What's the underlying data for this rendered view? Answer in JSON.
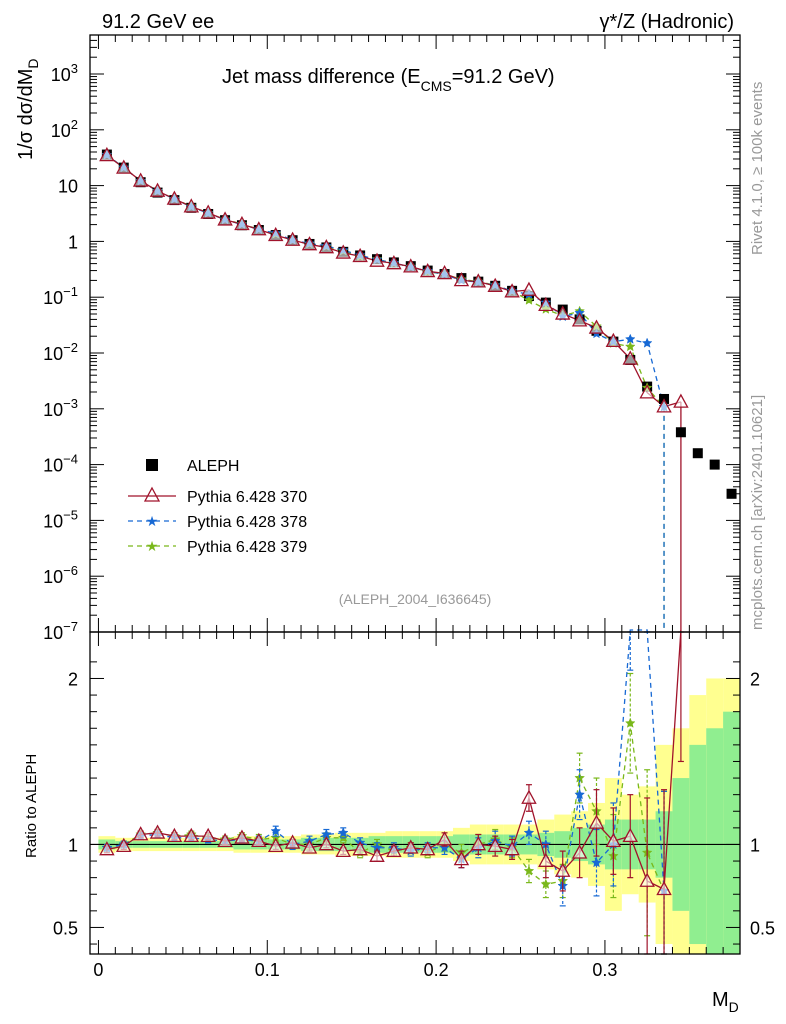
{
  "header": {
    "left": "91.2 GeV ee",
    "right": "γ*/Z (Hadronic)"
  },
  "side_labels": {
    "rivet": "Rivet 4.1.0, ≥ 100k events",
    "mcplots": "mcplots.cern.ch [arXiv:2401.10621]"
  },
  "chart_data": {
    "type": "line",
    "title": "Jet mass difference (E_CMS=91.2 GeV)",
    "title_parts": {
      "main": "Jet mass difference (E",
      "sub": "CMS",
      "tail": "=91.2 GeV)"
    },
    "analysis_tag": "(ALEPH_2004_I636645)",
    "xlabel": "M_D",
    "xlabel_parts": {
      "main": "M",
      "sub": "D"
    },
    "ylabel": "1/σ dσ/dM_D",
    "ylabel_parts": {
      "main": "1/σ  dσ/dM",
      "sub": "D"
    },
    "ratio_ylabel": "Ratio to ALEPH",
    "xlim": [
      -0.005,
      0.38
    ],
    "ylim": [
      1e-07,
      5000
    ],
    "ratio_ylim": [
      0.34,
      2.28
    ],
    "x_ticks": [
      {
        "value": 0.0,
        "label": "0"
      },
      {
        "value": 0.1,
        "label": "0.1"
      },
      {
        "value": 0.2,
        "label": "0.2"
      },
      {
        "value": 0.3,
        "label": "0.3"
      }
    ],
    "y_ticks": [
      {
        "value": 1000,
        "label": "10",
        "exp": "3"
      },
      {
        "value": 100,
        "label": "10",
        "exp": "2"
      },
      {
        "value": 10,
        "label": "10",
        "exp": ""
      },
      {
        "value": 1,
        "label": "1",
        "exp": ""
      },
      {
        "value": 0.1,
        "label": "10",
        "exp": "−1"
      },
      {
        "value": 0.01,
        "label": "10",
        "exp": "−2"
      },
      {
        "value": 0.001,
        "label": "10",
        "exp": "−3"
      },
      {
        "value": 0.0001,
        "label": "10",
        "exp": "−4"
      },
      {
        "value": 1e-05,
        "label": "10",
        "exp": "−5"
      },
      {
        "value": 1e-06,
        "label": "10",
        "exp": "−6"
      },
      {
        "value": 1e-07,
        "label": "10",
        "exp": "−7"
      }
    ],
    "ratio_ticks": [
      {
        "value": 0.5,
        "label": "0.5"
      },
      {
        "value": 1,
        "label": "1"
      },
      {
        "value": 2,
        "label": "2"
      }
    ],
    "x": [
      0.005,
      0.015,
      0.025,
      0.035,
      0.045,
      0.055,
      0.065,
      0.075,
      0.085,
      0.095,
      0.105,
      0.115,
      0.125,
      0.135,
      0.145,
      0.155,
      0.165,
      0.175,
      0.185,
      0.195,
      0.205,
      0.215,
      0.225,
      0.235,
      0.245,
      0.255,
      0.265,
      0.275,
      0.285,
      0.295,
      0.305,
      0.315,
      0.325,
      0.335,
      0.345,
      0.355,
      0.365,
      0.375
    ],
    "data_series": {
      "name": "ALEPH",
      "values": [
        36,
        21,
        11.5,
        7.5,
        5.5,
        4,
        3.1,
        2.4,
        1.95,
        1.6,
        1.3,
        1.05,
        0.9,
        0.78,
        0.65,
        0.56,
        0.48,
        0.42,
        0.36,
        0.3,
        0.26,
        0.22,
        0.19,
        0.16,
        0.13,
        0.105,
        0.08,
        0.06,
        0.04,
        0.025,
        0.016,
        0.0075,
        0.0025,
        0.0015,
        0.00038,
        0.00016,
        0.0001,
        3e-05
      ]
    },
    "band_outer": [
      0.05,
      0.04,
      0.04,
      0.04,
      0.04,
      0.04,
      0.04,
      0.04,
      0.05,
      0.05,
      0.05,
      0.05,
      0.06,
      0.06,
      0.07,
      0.07,
      0.07,
      0.08,
      0.08,
      0.08,
      0.08,
      0.1,
      0.12,
      0.12,
      0.12,
      0.12,
      0.15,
      0.18,
      0.2,
      0.25,
      0.4,
      0.3,
      0.35,
      0.6,
      0.7,
      0.9,
      1.0,
      1.0
    ],
    "band_inner": [
      0.03,
      0.02,
      0.02,
      0.02,
      0.02,
      0.02,
      0.02,
      0.02,
      0.03,
      0.03,
      0.03,
      0.03,
      0.04,
      0.04,
      0.04,
      0.04,
      0.05,
      0.05,
      0.05,
      0.05,
      0.05,
      0.06,
      0.06,
      0.06,
      0.06,
      0.06,
      0.07,
      0.08,
      0.1,
      0.12,
      0.15,
      0.15,
      0.15,
      0.2,
      0.4,
      0.6,
      0.7,
      0.8
    ],
    "series": [
      {
        "name": "Pythia 6.428 370",
        "color": "#a0132b",
        "dash": "solid",
        "marker": "triangle",
        "last_index": 34,
        "ratio": [
          0.97,
          0.99,
          1.06,
          1.07,
          1.05,
          1.05,
          1.05,
          1.02,
          1.04,
          1.02,
          0.99,
          1.01,
          0.98,
          1.0,
          0.96,
          0.97,
          0.93,
          0.96,
          0.98,
          0.97,
          1.03,
          0.91,
          1.0,
          0.99,
          0.97,
          1.28,
          0.9,
          0.84,
          0.95,
          1.13,
          1.02,
          1.05,
          0.78,
          0.73,
          3.5
        ],
        "ratio_err": [
          0.02,
          0.02,
          0.02,
          0.02,
          0.02,
          0.02,
          0.02,
          0.02,
          0.02,
          0.02,
          0.02,
          0.02,
          0.02,
          0.02,
          0.02,
          0.03,
          0.03,
          0.03,
          0.03,
          0.03,
          0.04,
          0.05,
          0.06,
          0.06,
          0.06,
          0.08,
          0.1,
          0.12,
          0.15,
          0.2,
          0.2,
          0.25,
          0.5,
          0.6,
          2.0
        ]
      },
      {
        "name": "Pythia 6.428 378",
        "color": "#1769d4",
        "dash": "5,4",
        "marker": "star",
        "last_index": 33,
        "ratio": [
          0.98,
          1.0,
          1.05,
          1.06,
          1.04,
          1.04,
          1.03,
          1.02,
          1.03,
          1.02,
          1.08,
          1.0,
          1.02,
          1.06,
          1.07,
          1.01,
          0.98,
          0.98,
          0.96,
          0.98,
          0.98,
          0.91,
          0.98,
          1.02,
          0.99,
          1.07,
          1.0,
          0.75,
          1.3,
          0.89,
          1.0,
          2.35,
          6.0,
          0.72
        ],
        "ratio_err": [
          0.02,
          0.02,
          0.02,
          0.02,
          0.02,
          0.02,
          0.02,
          0.02,
          0.02,
          0.03,
          0.03,
          0.03,
          0.03,
          0.03,
          0.03,
          0.03,
          0.03,
          0.03,
          0.03,
          0.03,
          0.04,
          0.05,
          0.06,
          0.06,
          0.06,
          0.07,
          0.08,
          0.12,
          0.15,
          0.2,
          0.25,
          0.3,
          0.6,
          0.6
        ]
      },
      {
        "name": "Pythia 6.428 379",
        "color": "#7ab81b",
        "dash": "5,4",
        "marker": "star",
        "last_index": 33,
        "ratio": [
          0.98,
          1.0,
          1.06,
          1.07,
          1.05,
          1.06,
          1.04,
          1.03,
          1.05,
          1.03,
          1.04,
          1.0,
          1.0,
          1.04,
          1.04,
          0.95,
          1.0,
          0.96,
          0.98,
          0.95,
          1.0,
          0.95,
          1.0,
          1.03,
          0.98,
          0.84,
          0.76,
          0.78,
          1.4,
          1.2,
          0.93,
          1.73,
          0.95,
          0.72
        ],
        "ratio_err": [
          0.02,
          0.02,
          0.02,
          0.02,
          0.02,
          0.02,
          0.02,
          0.02,
          0.02,
          0.03,
          0.03,
          0.03,
          0.03,
          0.03,
          0.03,
          0.03,
          0.03,
          0.03,
          0.03,
          0.03,
          0.04,
          0.05,
          0.06,
          0.06,
          0.06,
          0.07,
          0.08,
          0.1,
          0.15,
          0.2,
          0.25,
          0.3,
          0.5,
          0.6
        ]
      }
    ]
  }
}
